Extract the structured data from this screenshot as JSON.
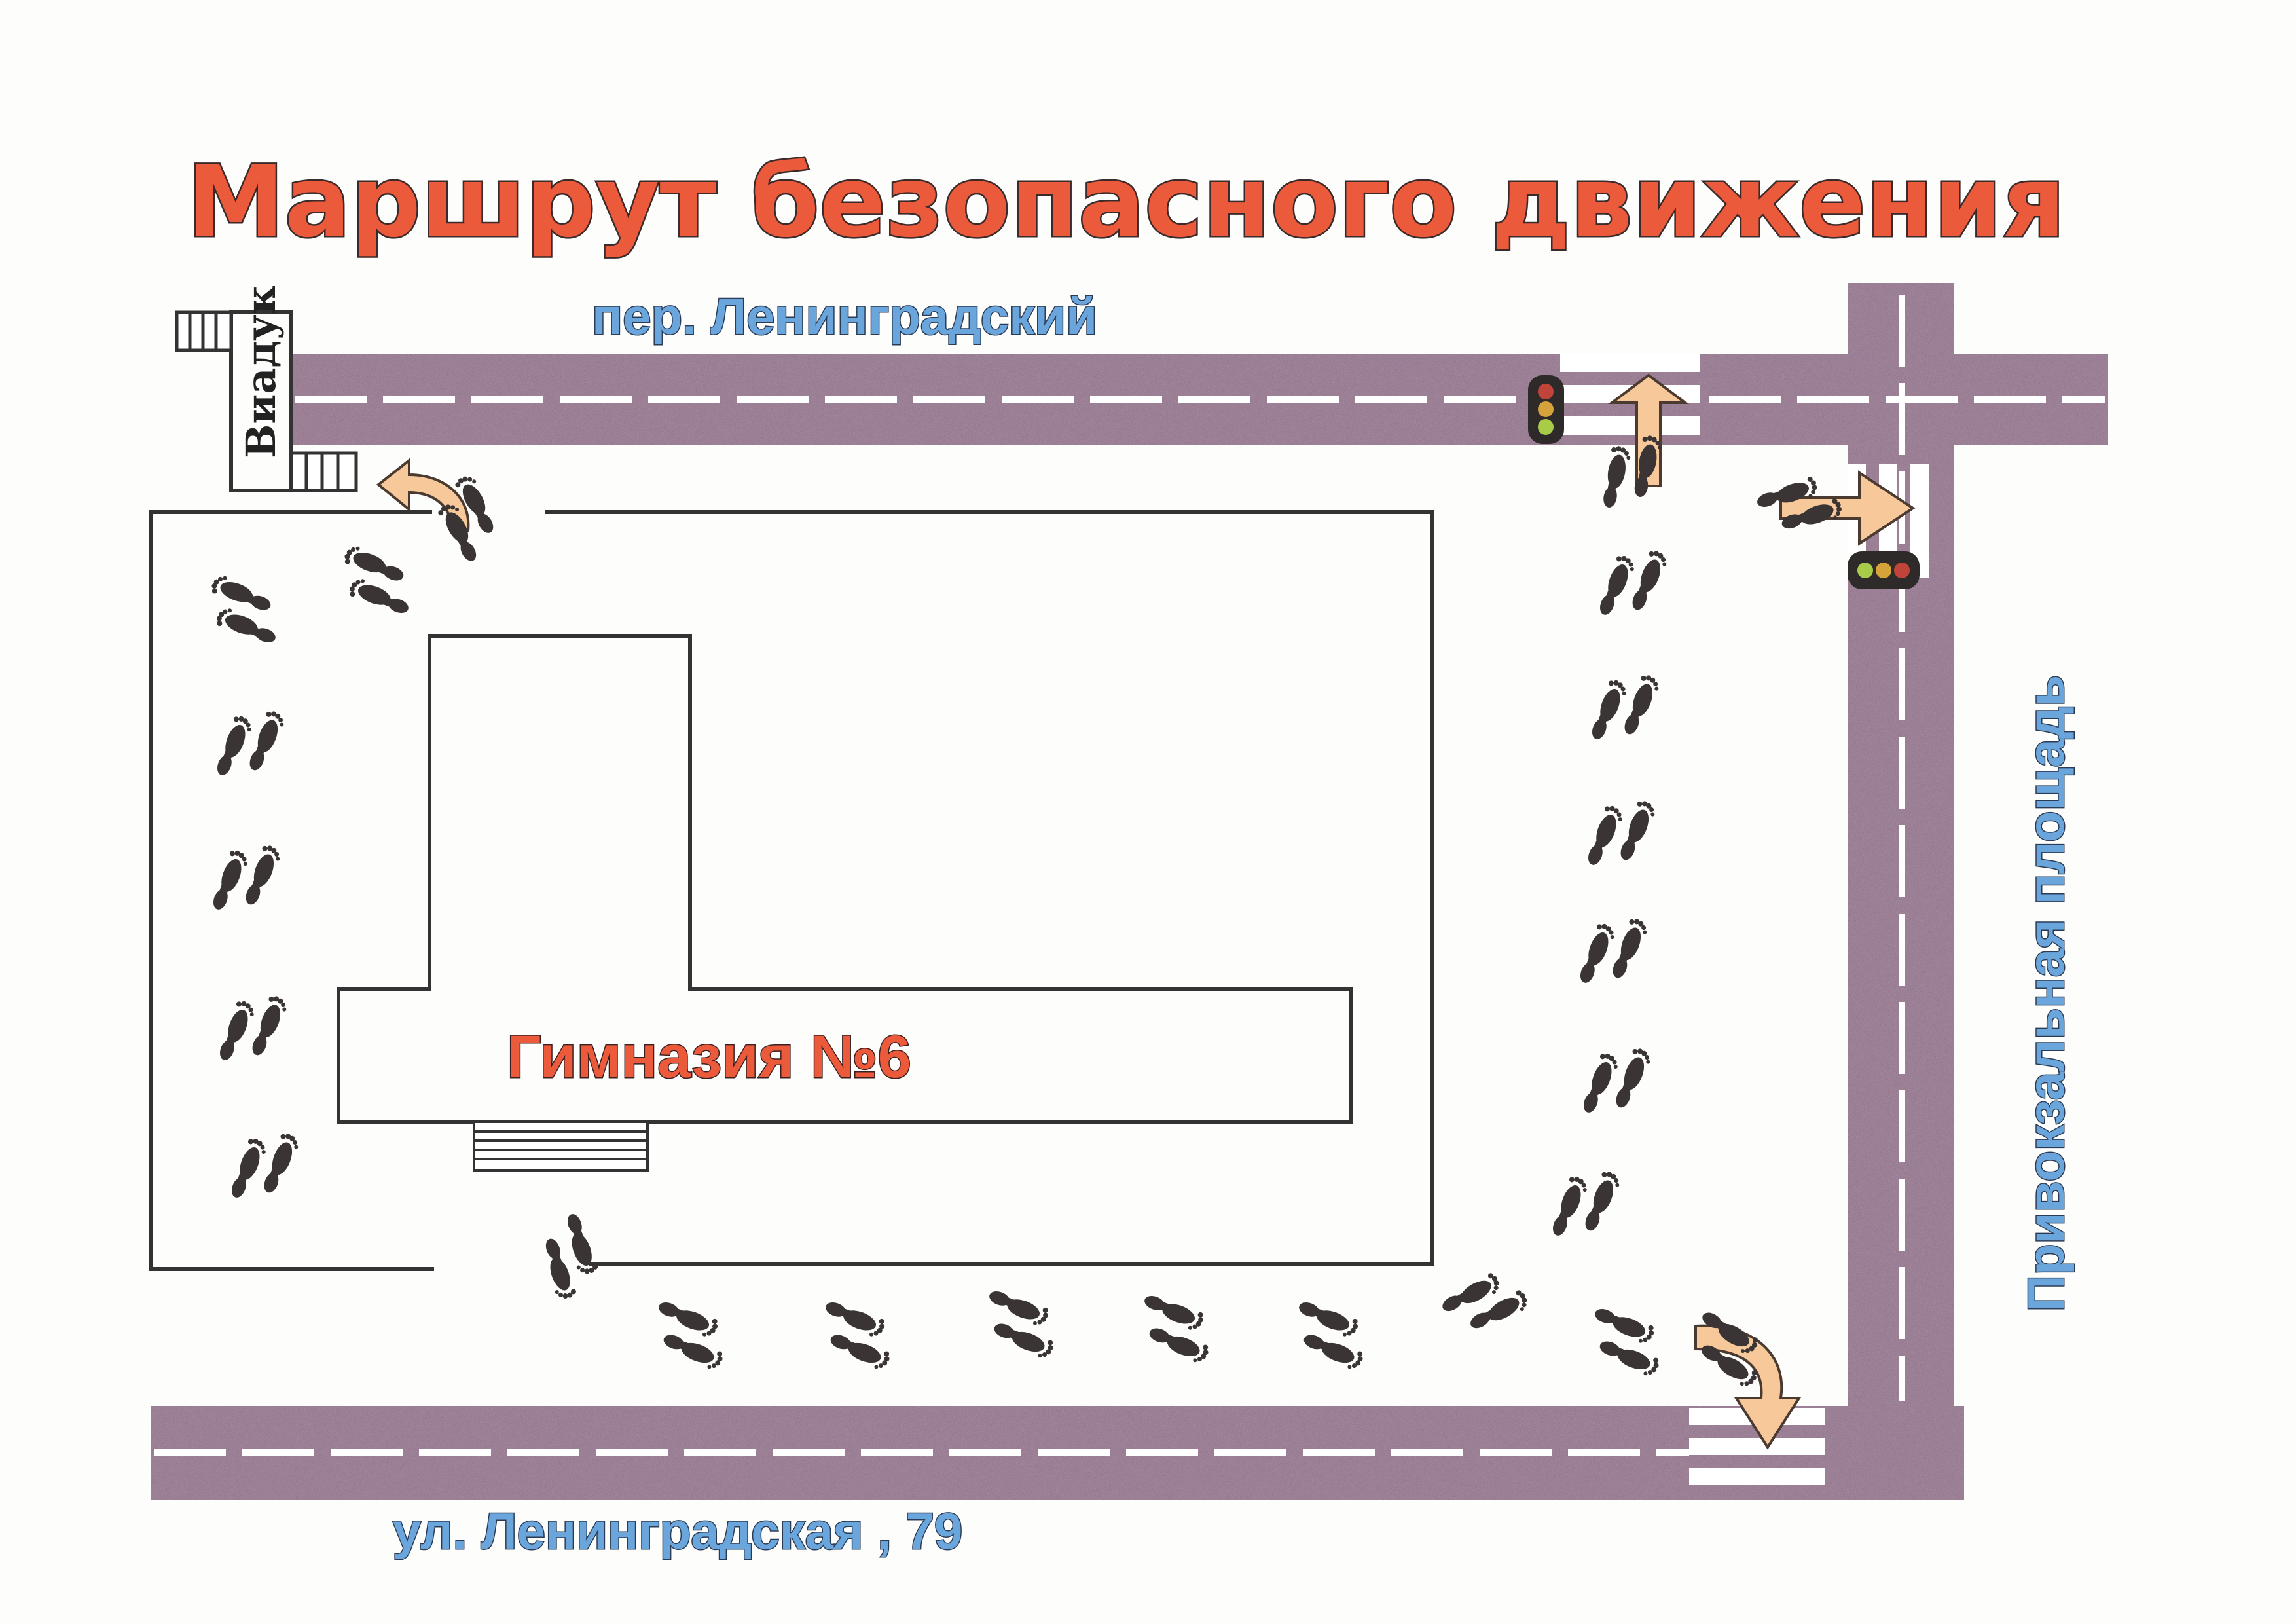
{
  "title": "Маршрут безопасного движения",
  "streets": {
    "top": "пер. Ленинградский",
    "bottom": "ул. Ленинградская , 79",
    "right": "Привокзальная площадь"
  },
  "landmarks": {
    "viaduct": "Виадук",
    "school": "Гимназия №6"
  },
  "colors": {
    "road": "#8b6c84",
    "title": "#ec5a3c",
    "street_label": "#6aa6dc",
    "arrow": "#f6c89a",
    "footprint": "#3a3434"
  },
  "icons": [
    "footprints-icon",
    "traffic-light-icon",
    "route-arrow-icon",
    "crosswalk-icon",
    "stairs-icon"
  ]
}
